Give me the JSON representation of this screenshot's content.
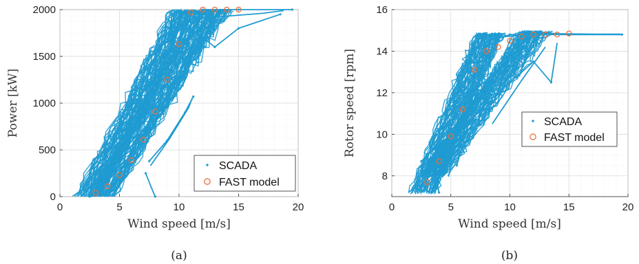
{
  "chart_data": [
    {
      "type": "scatter",
      "panel_label": "(a)",
      "xlabel": "Wind speed [m/s]",
      "ylabel": "Power [kW]",
      "xlim": [
        0,
        20
      ],
      "ylim": [
        0,
        2000
      ],
      "xticks": [
        0,
        5,
        10,
        15,
        20
      ],
      "yticks": [
        0,
        500,
        1000,
        1500,
        2000
      ],
      "grid": true,
      "legend_position": "bottom-right",
      "colors": {
        "scada": "#1f9bd1",
        "fast": "#e8703a"
      },
      "series": [
        {
          "name": "SCADA",
          "marker": "dot",
          "cloud_bands": [
            {
              "x0": 2.4,
              "x1": 11.0,
              "y0": 0,
              "y1": 1980
            },
            {
              "x0": 3.5,
              "x1": 13.5,
              "y0": 0,
              "y1": 2000
            }
          ],
          "values": [
            [
              2.5,
              0
            ],
            [
              3.0,
              30
            ],
            [
              4.0,
              120
            ],
            [
              5.0,
              250
            ],
            [
              6.0,
              420
            ],
            [
              7.0,
              650
            ],
            [
              8.0,
              950
            ],
            [
              9.0,
              1300
            ],
            [
              10.0,
              1700
            ],
            [
              11.0,
              1980
            ],
            [
              12.0,
              2000
            ],
            [
              15.0,
              2000
            ],
            [
              19.5,
              2000
            ],
            [
              7.5,
              380
            ],
            [
              9.0,
              600
            ],
            [
              10.5,
              900
            ],
            [
              11.2,
              1070
            ],
            [
              8.0,
              0
            ],
            [
              7.2,
              250
            ],
            [
              13.0,
              1600
            ],
            [
              15.0,
              1800
            ],
            [
              18.5,
              1950
            ]
          ]
        },
        {
          "name": "FAST model",
          "marker": "circle",
          "x": [
            3,
            4,
            5,
            6,
            7,
            8,
            9,
            10,
            11,
            12,
            13,
            14,
            15
          ],
          "y": [
            40,
            110,
            230,
            390,
            610,
            910,
            1250,
            1630,
            1970,
            2000,
            2000,
            2000,
            2000
          ]
        }
      ]
    },
    {
      "type": "scatter",
      "panel_label": "(b)",
      "xlabel": "Wind speed [m/s]",
      "ylabel": "Rotor speed [rpm]",
      "xlim": [
        0,
        20
      ],
      "ylim": [
        7,
        16
      ],
      "xticks": [
        0,
        5,
        10,
        15,
        20
      ],
      "yticks": [
        8,
        10,
        12,
        14,
        16
      ],
      "grid": true,
      "legend_position": "center-right",
      "colors": {
        "scada": "#1f9bd1",
        "fast": "#e8703a"
      },
      "series": [
        {
          "name": "SCADA",
          "marker": "dot",
          "cloud_bands": [
            {
              "x0": 2.6,
              "x1": 8.5,
              "y0": 7.2,
              "y1": 14.8
            },
            {
              "x0": 3.5,
              "x1": 12.5,
              "y0": 8.0,
              "y1": 14.9
            }
          ],
          "values": [
            [
              2.5,
              8.7
            ],
            [
              3.0,
              9.0
            ],
            [
              4.0,
              9.5
            ],
            [
              5.0,
              10.0
            ],
            [
              6.0,
              11.2
            ],
            [
              7.0,
              12.5
            ],
            [
              8.0,
              13.8
            ],
            [
              9.0,
              14.6
            ],
            [
              10.0,
              14.8
            ],
            [
              15.0,
              14.8
            ],
            [
              19.5,
              14.8
            ],
            [
              4.0,
              7.2
            ],
            [
              3.7,
              8.0
            ],
            [
              13.5,
              12.5
            ],
            [
              12.0,
              13.5
            ],
            [
              5.5,
              8.5
            ]
          ]
        },
        {
          "name": "FAST model",
          "marker": "circle",
          "x": [
            3,
            4,
            5,
            6,
            7,
            8,
            9,
            10,
            11,
            12,
            13,
            14,
            15
          ],
          "y": [
            7.7,
            8.7,
            9.9,
            11.2,
            13.1,
            14.0,
            14.2,
            14.5,
            14.7,
            14.8,
            14.8,
            14.8,
            14.85
          ]
        }
      ]
    }
  ]
}
